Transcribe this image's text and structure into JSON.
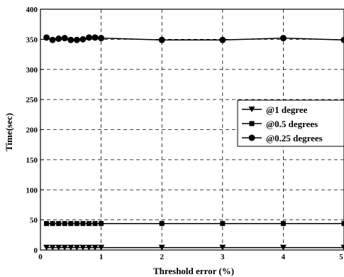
{
  "chart_data": {
    "type": "line",
    "title": "",
    "xlabel": "Threshold error (%)",
    "ylabel": "Time(sec)",
    "xlim": [
      0,
      5
    ],
    "ylim": [
      0,
      400
    ],
    "xticks": [
      0,
      1,
      2,
      3,
      4,
      5
    ],
    "yticks": [
      0,
      50,
      100,
      150,
      200,
      250,
      300,
      350,
      400
    ],
    "grid": true,
    "grid_style": "dashed",
    "legend_position": "right-middle",
    "series": [
      {
        "name": "@1 degree",
        "marker": "triangle-down",
        "color": "#000000",
        "x": [
          0.1,
          0.2,
          0.3,
          0.4,
          0.5,
          0.6,
          0.7,
          0.8,
          0.9,
          1,
          2,
          3,
          4,
          5
        ],
        "y": [
          4,
          4,
          4,
          4,
          4,
          4,
          4,
          4,
          4,
          4,
          4,
          4,
          4,
          4
        ]
      },
      {
        "name": "@0.5 degrees",
        "marker": "square",
        "color": "#000000",
        "x": [
          0.1,
          0.2,
          0.3,
          0.4,
          0.5,
          0.6,
          0.7,
          0.8,
          0.9,
          1,
          2,
          3,
          4,
          5
        ],
        "y": [
          44,
          44,
          44,
          44,
          44,
          44,
          44,
          44,
          44,
          44,
          44,
          44,
          44,
          44
        ]
      },
      {
        "name": "@0.25 degrees",
        "marker": "circle",
        "color": "#000000",
        "x": [
          0.1,
          0.2,
          0.3,
          0.4,
          0.5,
          0.6,
          0.7,
          0.8,
          0.9,
          1,
          2,
          3,
          4,
          5
        ],
        "y": [
          353,
          349,
          351,
          352,
          349,
          349,
          350,
          353,
          353,
          352,
          349,
          349,
          352,
          349
        ]
      }
    ]
  }
}
